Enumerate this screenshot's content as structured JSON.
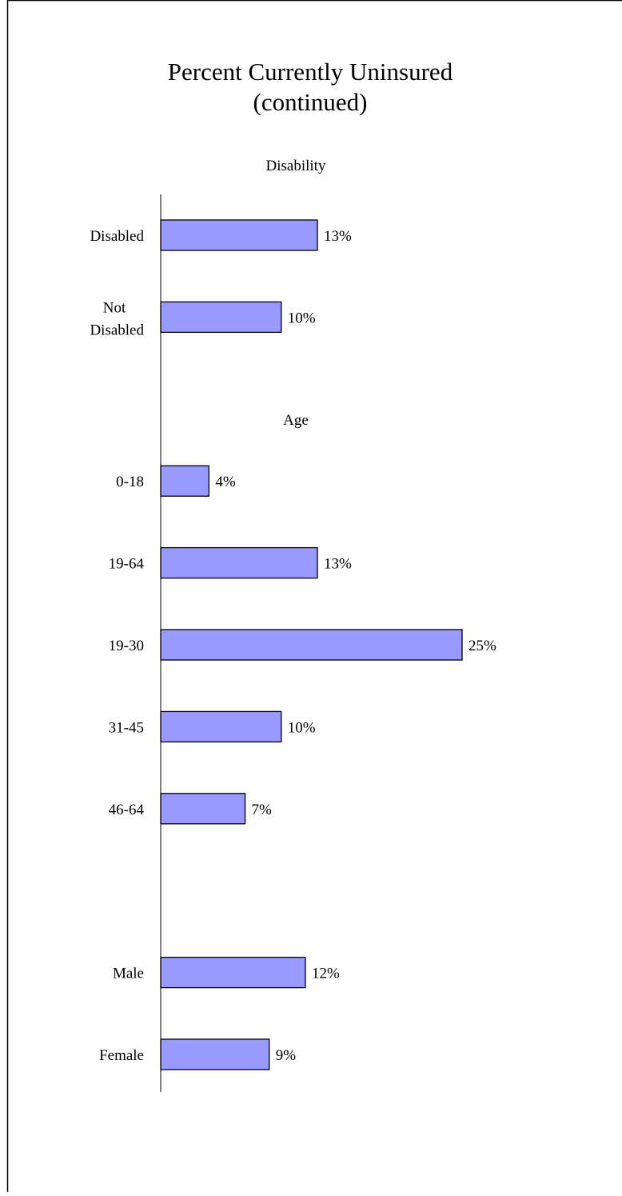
{
  "chart_data": {
    "type": "bar",
    "orientation": "horizontal",
    "title": "Percent Currently Uninsured",
    "subtitle": "(continued)",
    "annotations": [
      "Disability",
      "Age"
    ],
    "categories": [
      "Disabled",
      "Not Disabled",
      "0-18",
      "19-64",
      "19-30",
      "31-45",
      "46-64",
      "Male",
      "Female"
    ],
    "values": [
      13,
      10,
      4,
      13,
      25,
      10,
      7,
      12,
      9
    ],
    "value_labels": [
      "13%",
      "10%",
      "4%",
      "13%",
      "25%",
      "10%",
      "7%",
      "12%",
      "9%"
    ],
    "color": "#9999ff",
    "xlim": [
      0,
      25
    ]
  }
}
